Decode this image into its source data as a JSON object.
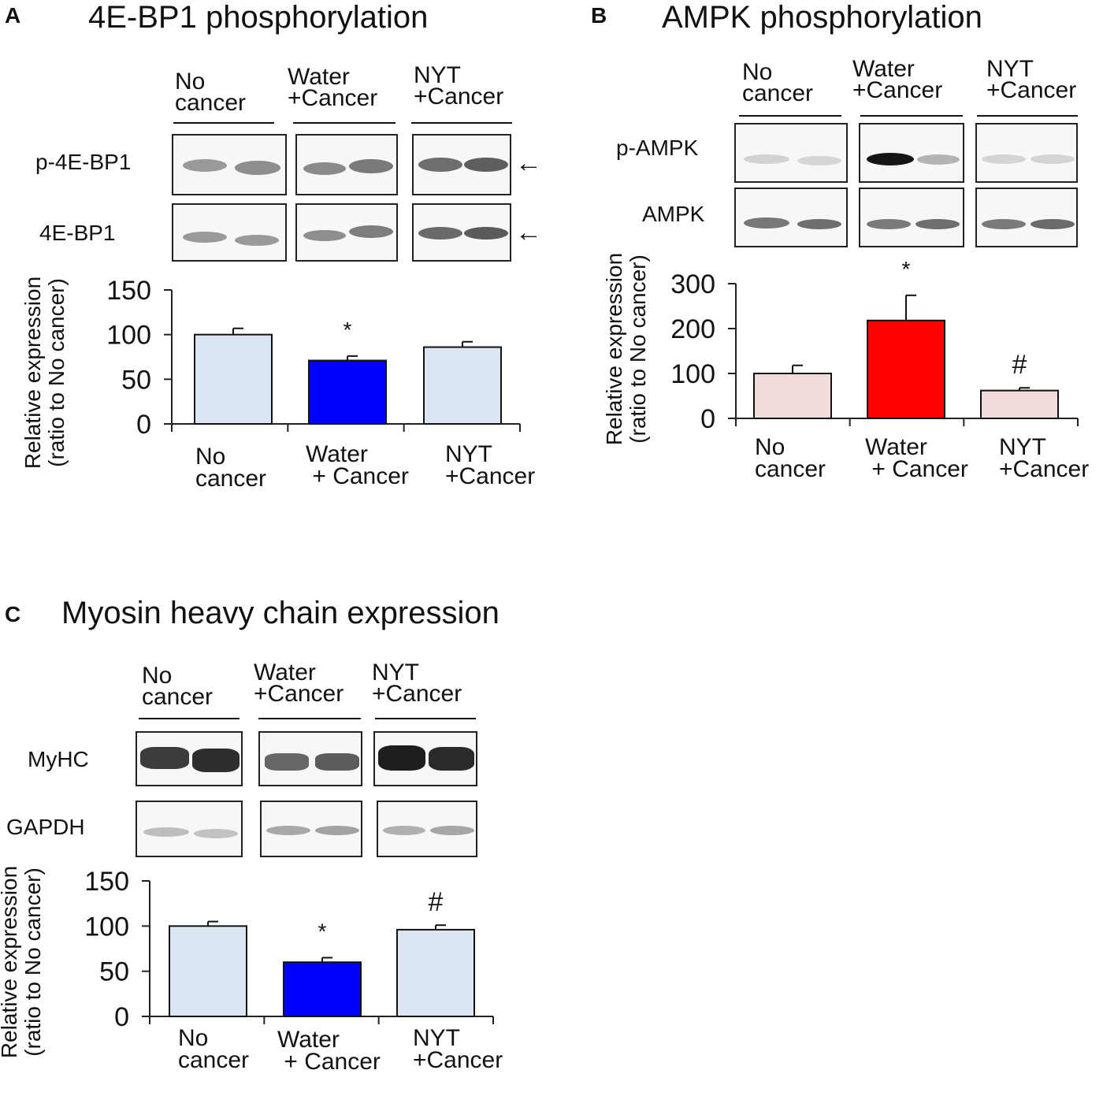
{
  "colors": {
    "bar_light_blue": "#dce6f2",
    "bar_blue": "#0000ff",
    "bar_light_pink": "#f2dcdb",
    "bar_red": "#ff0000",
    "axis": "#222222"
  },
  "panelA": {
    "letter": "A",
    "title": "4E-BP1 phosphorylation",
    "groups": [
      "No\ncancer",
      "Water\n+Cancer",
      "NYT\n+Cancer"
    ],
    "blot_rows": [
      "p-4E-BP1",
      "4E-BP1"
    ],
    "arrow_icon": "left-arrow-icon",
    "arrow": "←",
    "ylabel": "Relative expression\n(ratio to No cancer)",
    "categories": [
      "No\ncancer",
      "Water\n + Cancer",
      "NYT\n+Cancer"
    ]
  },
  "panelB": {
    "letter": "B",
    "title": "AMPK phosphorylation",
    "groups": [
      "No\ncancer",
      "Water\n+Cancer",
      "NYT\n+Cancer"
    ],
    "blot_rows": [
      "p-AMPK",
      "AMPK"
    ],
    "ylabel": "Relative expression\n(ratio to No cancer)",
    "categories": [
      "No\ncancer",
      "Water\n + Cancer",
      "NYT\n+Cancer"
    ]
  },
  "panelC": {
    "letter": "C",
    "title": "Myosin heavy chain expression",
    "groups": [
      "No\ncancer",
      "Water\n+Cancer",
      "NYT\n+Cancer"
    ],
    "blot_rows": [
      "MyHC",
      "GAPDH"
    ],
    "ylabel": "Relative expression\n(ratio to No cancer)",
    "categories": [
      "No\ncancer",
      "Water\n + Cancer",
      "NYT\n+Cancer"
    ]
  },
  "chart_data": [
    {
      "type": "bar",
      "title": "4E-BP1 phosphorylation",
      "categories": [
        "No cancer",
        "Water + Cancer",
        "NYT +Cancer"
      ],
      "values": [
        100,
        71,
        86
      ],
      "errors": [
        7,
        5,
        6
      ],
      "bar_colors": [
        "#dce6f2",
        "#0000ff",
        "#dce6f2"
      ],
      "annotations": [
        "",
        "*",
        ""
      ],
      "ylabel": "Relative expression (ratio to No cancer)",
      "ylim": [
        0,
        150
      ],
      "yticks": [
        "0",
        "50",
        "100",
        "150"
      ],
      "grid": false
    },
    {
      "type": "bar",
      "title": "AMPK phosphorylation",
      "categories": [
        "No cancer",
        "Water + Cancer",
        "NYT +Cancer"
      ],
      "values": [
        100,
        218,
        62
      ],
      "errors": [
        18,
        56,
        6
      ],
      "bar_colors": [
        "#f2dcdb",
        "#ff0000",
        "#f2dcdb"
      ],
      "annotations": [
        "",
        "*",
        "#"
      ],
      "ylabel": "Relative expression (ratio to No cancer)",
      "ylim": [
        0,
        300
      ],
      "yticks": [
        "0",
        "100",
        "200",
        "300"
      ],
      "grid": false
    },
    {
      "type": "bar",
      "title": "Myosin heavy chain expression",
      "categories": [
        "No cancer",
        "Water + Cancer",
        "NYT +Cancer"
      ],
      "values": [
        100,
        60,
        96
      ],
      "errors": [
        5,
        5,
        5
      ],
      "bar_colors": [
        "#dce6f2",
        "#0000ff",
        "#dce6f2"
      ],
      "annotations": [
        "",
        "*",
        "#"
      ],
      "ylabel": "Relative expression (ratio to No cancer)",
      "ylim": [
        0,
        150
      ],
      "yticks": [
        "0",
        "50",
        "100",
        "150"
      ],
      "grid": false
    }
  ]
}
